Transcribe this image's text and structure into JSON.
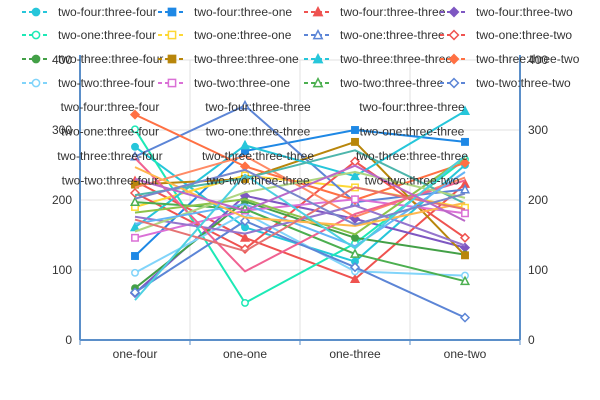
{
  "chart_data": {
    "type": "line",
    "categories": [
      "one-four",
      "one-one",
      "one-three",
      "one-two"
    ],
    "ylim": [
      0,
      400
    ],
    "y_ticks": [
      "0",
      "100",
      "200",
      "300",
      "400"
    ],
    "grid": true,
    "legend_position": "top",
    "series": [
      {
        "name": "two-four:three-four",
        "color": "#26c6da",
        "marker": "circle",
        "values": [
          276,
          161,
          112,
          250
        ]
      },
      {
        "name": "two-four:three-one",
        "color": "#1e88e5",
        "marker": "square",
        "values": [
          120,
          270,
          300,
          283
        ]
      },
      {
        "name": "two-four:three-three",
        "color": "#ef5350",
        "marker": "triangle",
        "values": [
          227,
          146,
          87,
          223
        ]
      },
      {
        "name": "two-four:three-two",
        "color": "#7e57c2",
        "marker": "diamond",
        "values": [
          67,
          206,
          173,
          132
        ]
      },
      {
        "name": "two-one:three-four",
        "color": "#1de9b6",
        "marker": "circle-open",
        "values": [
          301,
          53,
          138,
          258
        ]
      },
      {
        "name": "two-one:three-one",
        "color": "#fdd835",
        "marker": "square-open",
        "values": [
          190,
          235,
          218,
          189
        ]
      },
      {
        "name": "two-one:three-three",
        "color": "#5c85d6",
        "marker": "triangle-open",
        "values": [
          262,
          335,
          197,
          215
        ]
      },
      {
        "name": "two-one:three-two",
        "color": "#ef5350",
        "marker": "diamond-open",
        "values": [
          210,
          130,
          255,
          146
        ]
      },
      {
        "name": "two-three:three-four",
        "color": "#43a047",
        "marker": "circle",
        "values": [
          74,
          198,
          146,
          122
        ]
      },
      {
        "name": "two-three:three-one",
        "color": "#b8860b",
        "marker": "square",
        "values": [
          222,
          230,
          283,
          121
        ]
      },
      {
        "name": "two-three:three-three",
        "color": "#26c6da",
        "marker": "triangle",
        "values": [
          161,
          278,
          234,
          327
        ]
      },
      {
        "name": "two-three:three-two",
        "color": "#ff7043",
        "marker": "diamond",
        "values": [
          322,
          248,
          200,
          253
        ]
      },
      {
        "name": "two-two:three-four",
        "color": "#81d4fa",
        "marker": "circle-open",
        "values": [
          96,
          181,
          98,
          92
        ]
      },
      {
        "name": "two-two:three-one",
        "color": "#da70d6",
        "marker": "square-open",
        "values": [
          146,
          185,
          201,
          181
        ]
      },
      {
        "name": "two-two:three-three",
        "color": "#4caf50",
        "marker": "triangle-open",
        "values": [
          197,
          187,
          123,
          84
        ]
      },
      {
        "name": "two-two:three-two",
        "color": "#5c85d6",
        "marker": "diamond-open",
        "values": [
          68,
          170,
          104,
          32
        ]
      },
      {
        "color": "#8bc34a",
        "values": [
          182,
          201,
          151,
          261
        ]
      },
      {
        "color": "#ff8a65",
        "values": [
          218,
          263,
          176,
          232
        ]
      },
      {
        "color": "#9575cd",
        "values": [
          176,
          152,
          192,
          135
        ]
      },
      {
        "color": "#4db6ac",
        "values": [
          207,
          231,
          271,
          195
        ]
      },
      {
        "color": "#f06292",
        "values": [
          260,
          98,
          180,
          228
        ]
      },
      {
        "color": "#aed581",
        "values": [
          155,
          211,
          240,
          203
        ]
      },
      {
        "color": "#64b5f6",
        "values": [
          166,
          194,
          134,
          240
        ]
      },
      {
        "color": "#ffb74d",
        "values": [
          247,
          175,
          163,
          196
        ]
      },
      {
        "color": "#e57373",
        "values": [
          172,
          127,
          218,
          187
        ]
      },
      {
        "color": "#4dd0e1",
        "values": [
          57,
          236,
          131,
          263
        ]
      },
      {
        "color": "#ba68c8",
        "values": [
          230,
          185,
          249,
          170
        ]
      },
      {
        "color": "#7986cb",
        "values": [
          202,
          243,
          165,
          209
        ]
      }
    ],
    "overlay_labels": {
      "left": [
        "two-four:three-four",
        "two-one:three-four",
        "two-three:three-four",
        "two-two:three-four"
      ],
      "middle": [
        "two-four:three-three",
        "two-one:three-three",
        "two-three:three-three",
        "two-two:three-three"
      ],
      "right": [
        "two-four:three-three",
        "two-one:three-three",
        "two-three:three-three",
        "two-two:three-two"
      ]
    }
  }
}
